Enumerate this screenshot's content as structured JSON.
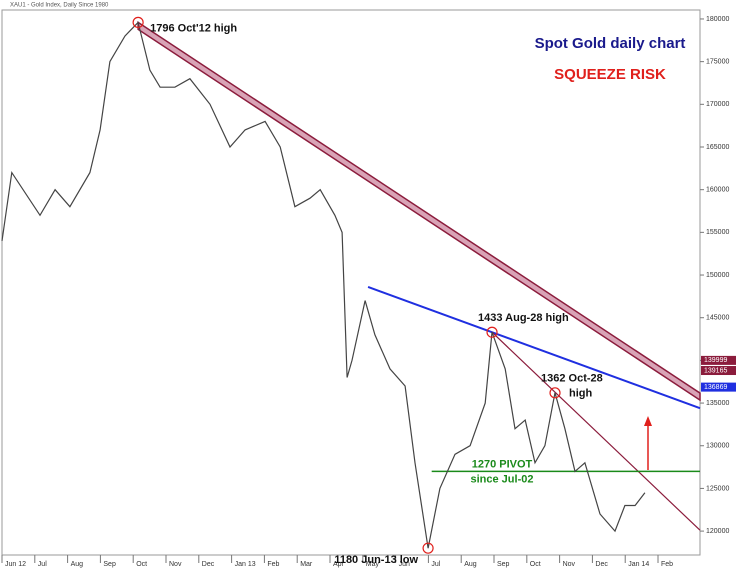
{
  "chart_data": {
    "type": "line",
    "header": "XAU1 - Gold Index, Daily Since 1980",
    "title": "Spot Gold daily chart",
    "subtitle": "SQUEEZE RISK",
    "xlim": [
      0,
      21.28
    ],
    "xticks": [
      {
        "value": 0,
        "label": "Jun 12"
      },
      {
        "value": 1,
        "label": "Jul"
      },
      {
        "value": 2,
        "label": "Aug"
      },
      {
        "value": 3,
        "label": "Sep"
      },
      {
        "value": 4,
        "label": "Oct"
      },
      {
        "value": 5,
        "label": "Nov"
      },
      {
        "value": 6,
        "label": "Dec"
      },
      {
        "value": 7,
        "label": "Jan 13"
      },
      {
        "value": 8,
        "label": "Feb"
      },
      {
        "value": 9,
        "label": "Mar"
      },
      {
        "value": 10,
        "label": "Apr"
      },
      {
        "value": 11,
        "label": "May"
      },
      {
        "value": 12,
        "label": "Jun"
      },
      {
        "value": 13,
        "label": "Jul"
      },
      {
        "value": 14,
        "label": "Aug"
      },
      {
        "value": 15,
        "label": "Sep"
      },
      {
        "value": 16,
        "label": "Oct"
      },
      {
        "value": 17,
        "label": "Nov"
      },
      {
        "value": 18,
        "label": "Dec"
      },
      {
        "value": 19,
        "label": "Jan 14"
      },
      {
        "value": 20,
        "label": "Feb"
      }
    ],
    "ylim": [
      117200,
      181050
    ],
    "yticks": [
      120000,
      125000,
      130000,
      135000,
      140000,
      145000,
      150000,
      155000,
      160000,
      165000,
      170000,
      175000,
      180000
    ],
    "series": [
      {
        "name": "XAU1",
        "color": "#444444",
        "x": [
          0,
          0.3,
          1.16,
          1.62,
          2.07,
          2.68,
          2.99,
          3.29,
          3.75,
          4.15,
          4.51,
          4.82,
          5.27,
          5.73,
          6.34,
          6.95,
          7.41,
          8.02,
          8.48,
          8.93,
          9.39,
          9.7,
          10.15,
          10.37,
          10.52,
          10.67,
          11.07,
          11.37,
          11.83,
          12.29,
          12.59,
          12.99,
          13.35,
          13.81,
          14.27,
          14.73,
          14.94,
          15.34,
          15.64,
          15.95,
          16.25,
          16.55,
          16.86,
          17.16,
          17.47,
          17.77,
          18.23,
          18.69,
          18.99,
          19.3,
          19.6
        ],
        "values": [
          154000,
          162000,
          157000,
          160000,
          158000,
          162000,
          167000,
          175000,
          178000,
          179600,
          174000,
          172000,
          172000,
          173000,
          170000,
          165000,
          167000,
          168000,
          165000,
          158000,
          159000,
          160000,
          157000,
          155000,
          138000,
          140000,
          147000,
          143000,
          139000,
          137000,
          128000,
          118000,
          125000,
          129000,
          130000,
          135000,
          143300,
          139000,
          132000,
          133000,
          128000,
          130000,
          136200,
          132000,
          127000,
          128000,
          122000,
          120000,
          123000,
          123000,
          124500
        ]
      }
    ],
    "trendlines": [
      {
        "x": [
          4.15,
          21.28
        ],
        "y": [
          179600,
          136170
        ],
        "color": "#8b1c3c"
      },
      {
        "x": [
          11.16,
          21.28
        ],
        "y": [
          148600,
          134400
        ],
        "color": "#1f2fe0"
      },
      {
        "x": [
          14.94,
          21.28
        ],
        "y": [
          143300,
          120100
        ],
        "color": "#8b1c3c"
      }
    ],
    "pivot": {
      "value": 127000,
      "x_start": 13.1,
      "labels": [
        "1270 PIVOT",
        "since Jul-02"
      ],
      "color": "#1a8a1a"
    },
    "annotations": [
      {
        "lines": [
          "1796 Oct'12 high"
        ],
        "x": 4.15,
        "y": 179600
      },
      {
        "lines": [
          "1180 Jun-13 low"
        ],
        "x": 12.99,
        "y": 118000
      },
      {
        "lines": [
          "1433 Aug-28 high"
        ],
        "x": 14.94,
        "y": 143300
      },
      {
        "lines": [
          "1362 Oct-28",
          "high"
        ],
        "x": 16.86,
        "y": 136200
      }
    ],
    "price_tags": [
      {
        "value": 139999,
        "color": "#8b1c3c"
      },
      {
        "value": 139165,
        "color": "#8b1c3c"
      },
      {
        "value": 136869,
        "color": "#1f2fe0"
      }
    ]
  }
}
